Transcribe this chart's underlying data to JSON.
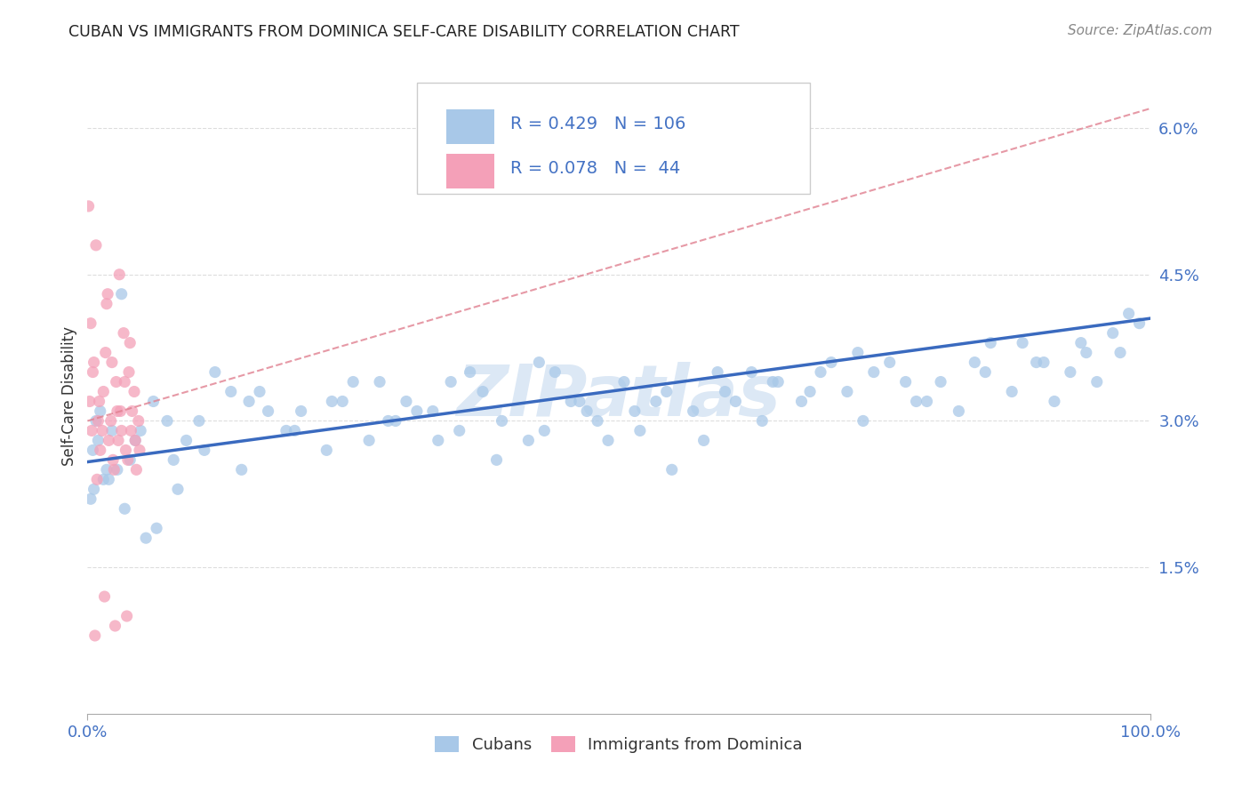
{
  "title": "CUBAN VS IMMIGRANTS FROM DOMINICA SELF-CARE DISABILITY CORRELATION CHART",
  "source": "Source: ZipAtlas.com",
  "ylabel": "Self-Care Disability",
  "xlim": [
    0,
    100
  ],
  "ylim": [
    0.0,
    6.5
  ],
  "yticks": [
    1.5,
    3.0,
    4.5,
    6.0
  ],
  "ytick_labels": [
    "1.5%",
    "3.0%",
    "4.5%",
    "6.0%"
  ],
  "xticks": [
    0,
    100
  ],
  "xtick_labels": [
    "0.0%",
    "100.0%"
  ],
  "color_cuban": "#a8c8e8",
  "color_dominica": "#f4a0b8",
  "trendline_cuban_color": "#3a6abf",
  "trendline_dominica_color": "#e08090",
  "R_cuban": 0.429,
  "N_cuban": 106,
  "R_dominica": 0.078,
  "N_dominica": 44,
  "background_color": "#ffffff",
  "grid_color": "#dddddd",
  "tick_color": "#4472c4",
  "title_color": "#222222",
  "source_color": "#888888",
  "ylabel_color": "#333333",
  "watermark": "ZIPatlas",
  "watermark_color": "#dce8f5",
  "legend_edge_color": "#cccccc",
  "cuban_x": [
    3.2,
    0.5,
    1.2,
    1.8,
    4.5,
    6.2,
    8.1,
    2.3,
    0.8,
    1.5,
    12.0,
    10.5,
    9.3,
    15.2,
    18.7,
    20.1,
    22.5,
    25.0,
    28.3,
    30.0,
    32.5,
    35.0,
    37.2,
    39.0,
    41.5,
    44.0,
    46.3,
    48.0,
    50.5,
    52.0,
    54.5,
    57.0,
    59.3,
    61.0,
    63.5,
    65.0,
    67.2,
    69.0,
    71.5,
    73.0,
    75.5,
    78.0,
    80.3,
    82.0,
    84.5,
    87.0,
    89.3,
    91.0,
    93.5,
    95.0,
    97.2,
    99.0,
    14.5,
    16.2,
    23.0,
    26.5,
    31.0,
    34.2,
    42.5,
    47.0,
    53.5,
    58.0,
    62.5,
    68.0,
    72.5,
    77.0,
    83.5,
    88.0,
    92.5,
    98.0,
    5.0,
    7.5,
    11.0,
    13.5,
    17.0,
    19.5,
    24.0,
    27.5,
    29.0,
    33.0,
    36.0,
    38.5,
    43.0,
    45.5,
    49.0,
    51.5,
    55.0,
    60.0,
    64.5,
    70.0,
    74.0,
    79.0,
    85.0,
    90.0,
    94.0,
    96.5,
    0.3,
    2.0,
    4.0,
    6.5,
    8.5,
    3.5,
    1.0,
    2.8,
    0.6,
    5.5
  ],
  "cuban_y": [
    4.3,
    2.7,
    3.1,
    2.5,
    2.8,
    3.2,
    2.6,
    2.9,
    3.0,
    2.4,
    3.5,
    3.0,
    2.8,
    3.2,
    2.9,
    3.1,
    2.7,
    3.4,
    3.0,
    3.2,
    3.1,
    2.9,
    3.3,
    3.0,
    2.8,
    3.5,
    3.2,
    3.0,
    3.4,
    2.9,
    3.3,
    3.1,
    3.5,
    3.2,
    3.0,
    3.4,
    3.2,
    3.5,
    3.3,
    3.0,
    3.6,
    3.2,
    3.4,
    3.1,
    3.5,
    3.3,
    3.6,
    3.2,
    3.8,
    3.4,
    3.7,
    4.0,
    2.5,
    3.3,
    3.2,
    2.8,
    3.1,
    3.4,
    3.6,
    3.1,
    3.2,
    2.8,
    3.5,
    3.3,
    3.7,
    3.4,
    3.6,
    3.8,
    3.5,
    4.1,
    2.9,
    3.0,
    2.7,
    3.3,
    3.1,
    2.9,
    3.2,
    3.4,
    3.0,
    2.8,
    3.5,
    2.6,
    2.9,
    3.2,
    2.8,
    3.1,
    2.5,
    3.3,
    3.4,
    3.6,
    3.5,
    3.2,
    3.8,
    3.6,
    3.7,
    3.9,
    2.2,
    2.4,
    2.6,
    1.9,
    2.3,
    2.1,
    2.8,
    2.5,
    2.3,
    1.8
  ],
  "dominica_x": [
    0.2,
    0.4,
    0.5,
    0.8,
    1.0,
    1.2,
    1.5,
    1.8,
    2.0,
    2.3,
    2.5,
    2.8,
    3.0,
    3.2,
    3.5,
    3.8,
    4.0,
    4.2,
    4.5,
    4.8,
    0.1,
    0.3,
    0.6,
    0.9,
    1.1,
    1.4,
    1.7,
    1.9,
    2.2,
    2.4,
    2.7,
    2.9,
    3.1,
    3.4,
    3.6,
    3.9,
    4.1,
    4.4,
    4.6,
    4.9,
    0.7,
    1.6,
    2.6,
    3.7
  ],
  "dominica_y": [
    3.2,
    2.9,
    3.5,
    4.8,
    3.0,
    2.7,
    3.3,
    4.2,
    2.8,
    3.6,
    2.5,
    3.1,
    4.5,
    2.9,
    3.4,
    2.6,
    3.8,
    3.1,
    2.8,
    3.0,
    5.2,
    4.0,
    3.6,
    2.4,
    3.2,
    2.9,
    3.7,
    4.3,
    3.0,
    2.6,
    3.4,
    2.8,
    3.1,
    3.9,
    2.7,
    3.5,
    2.9,
    3.3,
    2.5,
    2.7,
    0.8,
    1.2,
    0.9,
    1.0
  ],
  "cuban_trend_x0": 0,
  "cuban_trend_y0": 2.58,
  "cuban_trend_x1": 100,
  "cuban_trend_y1": 4.05,
  "dominica_trend_x0": 0,
  "dominica_trend_y0": 3.0,
  "dominica_trend_x1": 100,
  "dominica_trend_y1": 6.2
}
